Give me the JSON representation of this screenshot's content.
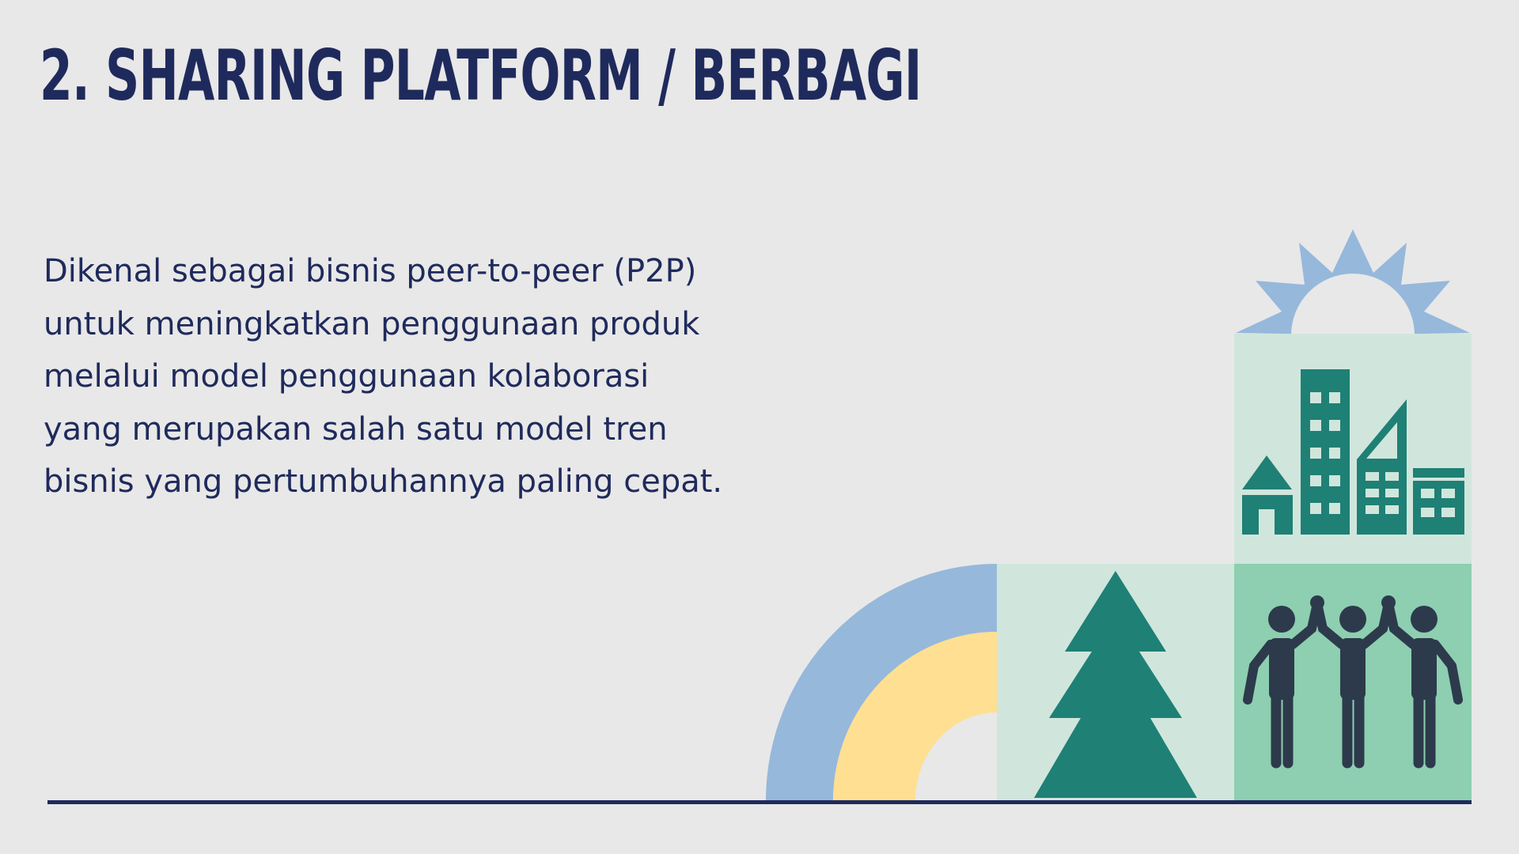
{
  "slide": {
    "title": "2. SHARING PLATFORM / BERBAGI",
    "body": "Dikenal sebagai bisnis peer-to-peer (P2P)\nuntuk meningkatkan penggunaan produk\nmelalui model penggunaan kolaborasi\nyang merupakan salah satu model tren\nbisnis yang pertumbuhannya paling cepat."
  },
  "illustration": {
    "icons": [
      "sun-icon",
      "city-buildings-icon",
      "pine-tree-icon",
      "people-high-five-icon",
      "rainbow-arc-icon"
    ]
  },
  "colors": {
    "background": "#e8e8e8",
    "title": "#1f2a5c",
    "text": "#1f2a5c",
    "navy": "#1f2a5c",
    "light_blue": "#96b8db",
    "yellow": "#ffdf91",
    "mint_light": "#d0e6dc",
    "mint": "#8dcfb0",
    "teal": "#1f8076",
    "dark_slate": "#2d3a4c"
  }
}
